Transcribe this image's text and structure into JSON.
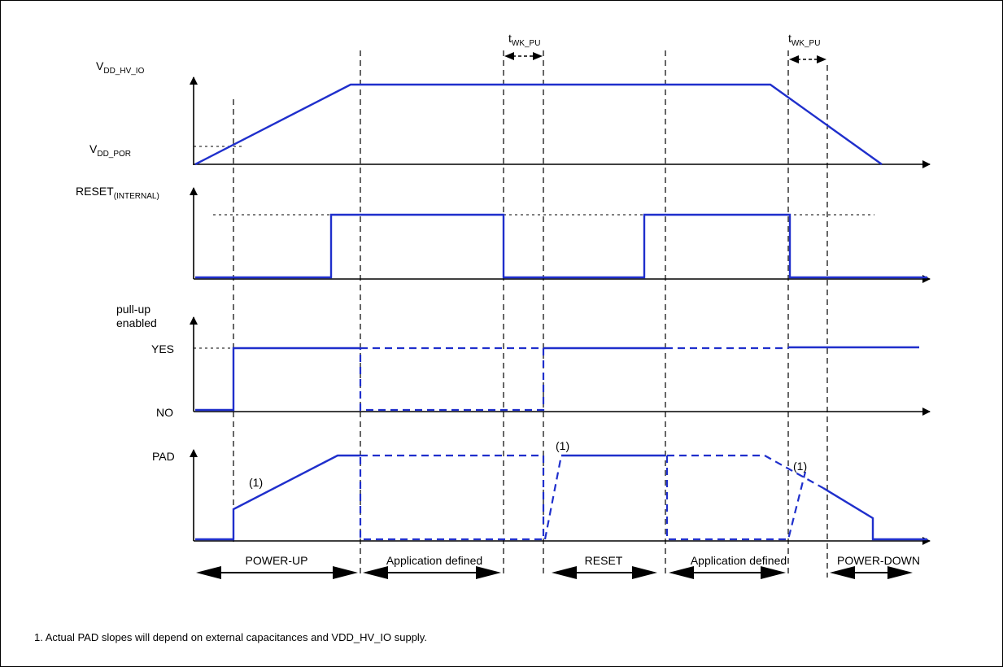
{
  "signals": {
    "vdd": {
      "main": "V",
      "sub": "DD_HV_IO"
    },
    "vdd_por": {
      "main": "V",
      "sub": "DD_POR"
    },
    "reset": {
      "main": "RESET",
      "sub": "(INTERNAL)"
    },
    "pullup_line1": "pull-up",
    "pullup_line2": "enabled",
    "yes": "YES",
    "no": "NO",
    "pad": "PAD"
  },
  "timing": {
    "twk_main": "t",
    "twk_sub": "WK_PU",
    "note_mark": "(1)"
  },
  "phases": [
    "POWER-UP",
    "Application defined",
    "RESET",
    "Application defined",
    "POWER-DOWN"
  ],
  "footnote": "1. Actual PAD slopes will depend on external capacitances and VDD_HV_IO supply.",
  "colors": {
    "signal": "#1f2fcc",
    "axis": "#000000"
  }
}
